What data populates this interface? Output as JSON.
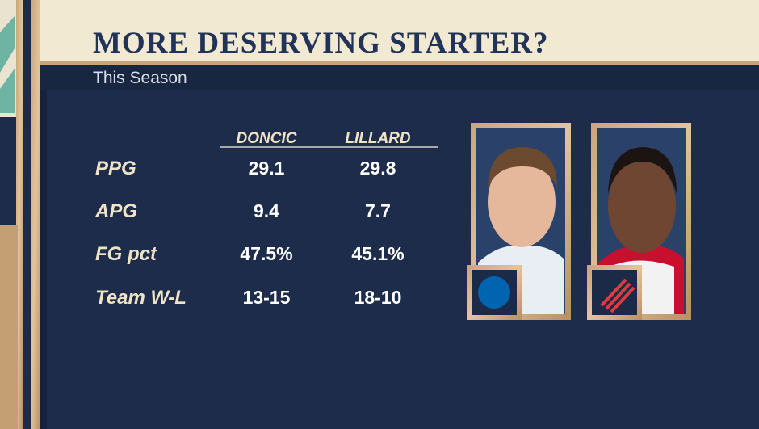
{
  "header": {
    "title": "MORE DESERVING STARTER?",
    "subtitle": "This Season"
  },
  "table": {
    "columns": [
      "DONCIC",
      "LILLARD"
    ],
    "rows": [
      [
        "PPG",
        "29.1",
        "29.8"
      ],
      [
        "APG",
        "9.4",
        "7.7"
      ],
      [
        "FG pct",
        "47.5%",
        "45.1%"
      ],
      [
        "Team W-L",
        "13-15",
        "18-10"
      ]
    ]
  }
}
